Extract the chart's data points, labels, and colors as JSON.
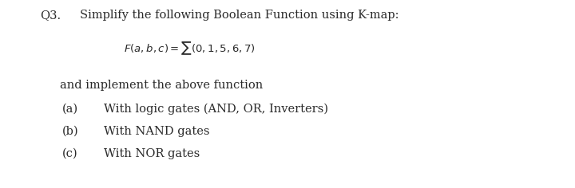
{
  "background_color": "#ffffff",
  "text_color": "#2a2a2a",
  "q_number": "Q3.",
  "title_text": "Simplify the following Boolean Function using K-map:",
  "formula_full": "$F(a,b,c) = \\sum (0,1,5,6,7)$",
  "line2_text": "and implement the above function",
  "items": [
    {
      "label": "(a)",
      "text": "With logic gates (AND, OR, Inverters)"
    },
    {
      "label": "(b)",
      "text": "With NAND gates"
    },
    {
      "label": "(c)",
      "text": "With NOR gates"
    }
  ],
  "font_family": "serif",
  "title_fontsize": 10.5,
  "formula_fontsize": 9.5,
  "body_fontsize": 10.5
}
